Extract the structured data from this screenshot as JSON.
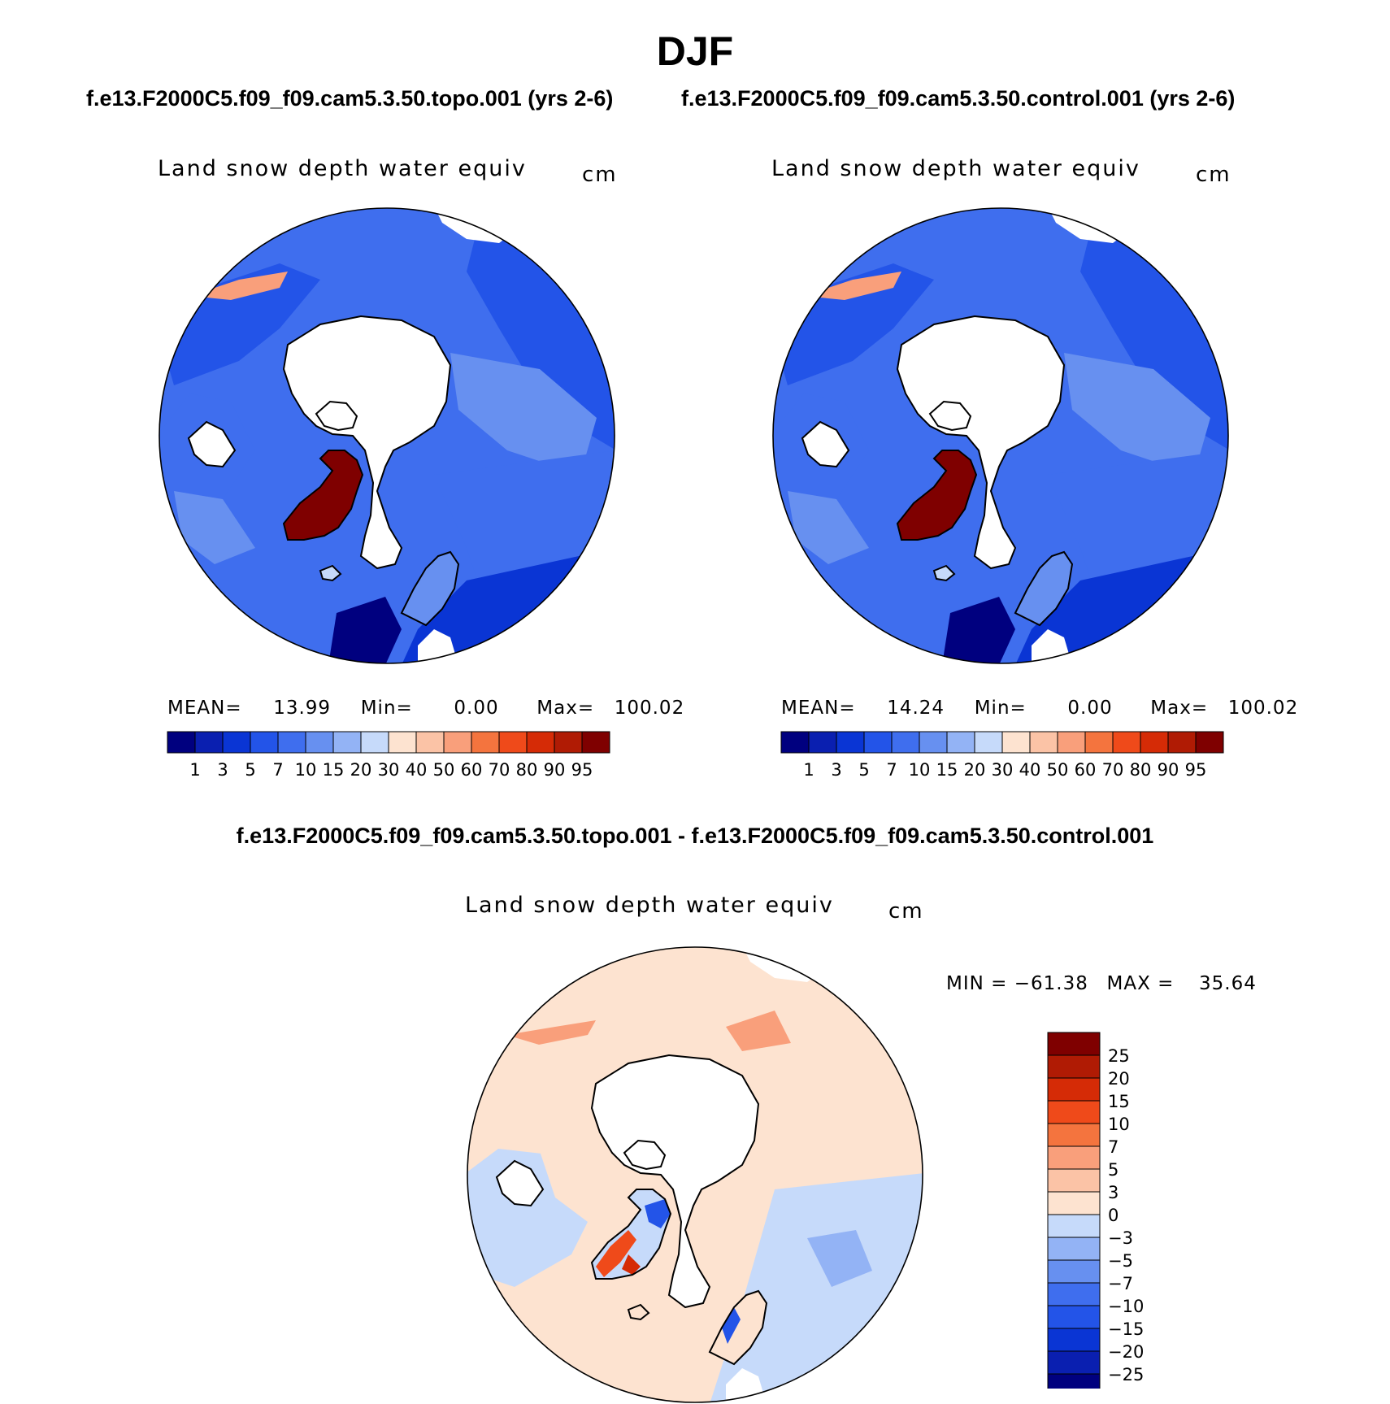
{
  "title": "DJF",
  "panels": {
    "topo": {
      "case": "f.e13.F2000C5.f09_f09.cam5.3.50.topo.001 (yrs 2-6)",
      "variable": "Land snow depth water equiv",
      "units": "cm",
      "stats": {
        "mean_label": "MEAN=",
        "mean": "13.99",
        "min_label": "Min=",
        "min": "0.00",
        "max_label": "Max=",
        "max": "100.02"
      }
    },
    "control": {
      "case": "f.e13.F2000C5.f09_f09.cam5.3.50.control.001 (yrs 2-6)",
      "variable": "Land snow depth water equiv",
      "units": "cm",
      "stats": {
        "mean_label": "MEAN=",
        "mean": "14.24",
        "min_label": "Min=",
        "min": "0.00",
        "max_label": "Max=",
        "max": "100.02"
      }
    },
    "diff": {
      "case": "f.e13.F2000C5.f09_f09.cam5.3.50.topo.001 - f.e13.F2000C5.f09_f09.cam5.3.50.control.001",
      "variable": "Land snow depth water equiv",
      "units": "cm",
      "stats": {
        "min_label": "MIN =",
        "min": "−61.38",
        "max_label": "MAX =",
        "max": "35.64"
      }
    }
  },
  "chart_data": [
    {
      "type": "heatmap",
      "projection": "north-polar-stereographic",
      "panel": "topo",
      "colorbar": {
        "orientation": "horizontal",
        "levels": [
          "1",
          "3",
          "5",
          "7",
          "10",
          "15",
          "20",
          "30",
          "40",
          "50",
          "60",
          "70",
          "80",
          "90",
          "95"
        ],
        "colors": [
          "#00007f",
          "#0a1fb0",
          "#0a35d4",
          "#2354e8",
          "#3f6eee",
          "#6790f0",
          "#93b3f5",
          "#c6dafa",
          "#fde3d0",
          "#fbc3a6",
          "#f99f7b",
          "#f4743e",
          "#ef4a1a",
          "#d52b06",
          "#b01b04",
          "#7f0000"
        ]
      }
    },
    {
      "type": "heatmap",
      "projection": "north-polar-stereographic",
      "panel": "control",
      "colorbar": {
        "orientation": "horizontal",
        "levels": [
          "1",
          "3",
          "5",
          "7",
          "10",
          "15",
          "20",
          "30",
          "40",
          "50",
          "60",
          "70",
          "80",
          "90",
          "95"
        ],
        "colors": [
          "#00007f",
          "#0a1fb0",
          "#0a35d4",
          "#2354e8",
          "#3f6eee",
          "#6790f0",
          "#93b3f5",
          "#c6dafa",
          "#fde3d0",
          "#fbc3a6",
          "#f99f7b",
          "#f4743e",
          "#ef4a1a",
          "#d52b06",
          "#b01b04",
          "#7f0000"
        ]
      }
    },
    {
      "type": "heatmap",
      "projection": "north-polar-stereographic",
      "panel": "diff",
      "colorbar": {
        "orientation": "vertical",
        "levels": [
          "25",
          "20",
          "15",
          "10",
          "7",
          "5",
          "3",
          "0",
          "−3",
          "−5",
          "−7",
          "−10",
          "−15",
          "−20",
          "−25"
        ],
        "colors": [
          "#7f0000",
          "#b01b04",
          "#d52b06",
          "#ef4a1a",
          "#f4743e",
          "#f99f7b",
          "#fbc3a6",
          "#fde3d0",
          "#c6dafa",
          "#93b3f5",
          "#6790f0",
          "#3f6eee",
          "#2354e8",
          "#0a35d4",
          "#0a1fb0",
          "#00007f"
        ]
      }
    }
  ]
}
